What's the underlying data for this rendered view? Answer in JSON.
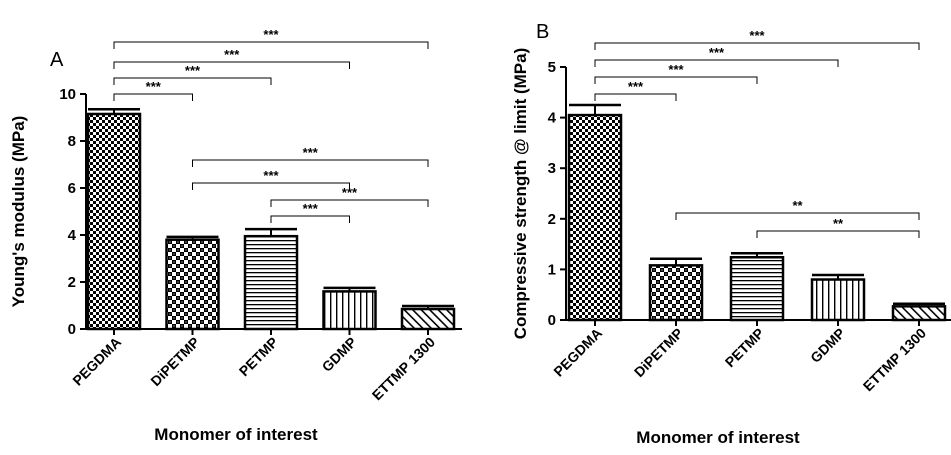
{
  "chart_data": [
    {
      "type": "bar",
      "panel_label": "A",
      "xlabel": "Monomer of interest",
      "ylabel": "Young's modulus (MPa)",
      "ylim": [
        0,
        10
      ],
      "yticks": [
        0,
        2,
        4,
        6,
        8,
        10
      ],
      "categories": [
        "PEGDMA",
        "DiPETMP",
        "PETMP",
        "GDMP",
        "ETTMP 1300"
      ],
      "values": [
        9.15,
        3.8,
        3.95,
        1.6,
        0.85
      ],
      "errors": [
        0.2,
        0.12,
        0.3,
        0.15,
        0.13
      ],
      "patterns": [
        "checker",
        "dotted-checker",
        "horizontal-lines",
        "vertical-lines",
        "diagonal-lines"
      ],
      "grid": false,
      "significance": [
        {
          "from": "PEGDMA",
          "to": "DiPETMP",
          "label": "***"
        },
        {
          "from": "PEGDMA",
          "to": "PETMP",
          "label": "***"
        },
        {
          "from": "PEGDMA",
          "to": "GDMP",
          "label": "***"
        },
        {
          "from": "PEGDMA",
          "to": "ETTMP 1300",
          "label": "***"
        },
        {
          "from": "PETMP",
          "to": "GDMP",
          "label": "***"
        },
        {
          "from": "PETMP",
          "to": "ETTMP 1300",
          "label": "***"
        },
        {
          "from": "DiPETMP",
          "to": "GDMP",
          "label": "***"
        },
        {
          "from": "DiPETMP",
          "to": "ETTMP 1300",
          "label": "***"
        }
      ]
    },
    {
      "type": "bar",
      "panel_label": "B",
      "xlabel": "Monomer of interest",
      "ylabel": "Compressive strength @ limit (MPa)",
      "ylim": [
        0,
        5
      ],
      "yticks": [
        0,
        1,
        2,
        3,
        4,
        5
      ],
      "categories": [
        "PEGDMA",
        "DiPETMP",
        "PETMP",
        "GDMP",
        "ETTMP 1300"
      ],
      "values": [
        4.05,
        1.08,
        1.24,
        0.8,
        0.27
      ],
      "errors": [
        0.2,
        0.13,
        0.08,
        0.09,
        0.05
      ],
      "patterns": [
        "checker",
        "dotted-checker",
        "horizontal-lines",
        "vertical-lines",
        "diagonal-lines"
      ],
      "grid": false,
      "significance": [
        {
          "from": "PEGDMA",
          "to": "DiPETMP",
          "label": "***"
        },
        {
          "from": "PEGDMA",
          "to": "PETMP",
          "label": "***"
        },
        {
          "from": "PEGDMA",
          "to": "GDMP",
          "label": "***"
        },
        {
          "from": "PEGDMA",
          "to": "ETTMP 1300",
          "label": "***"
        },
        {
          "from": "PETMP",
          "to": "ETTMP 1300",
          "label": "**"
        },
        {
          "from": "DiPETMP",
          "to": "ETTMP 1300",
          "label": "**"
        }
      ]
    }
  ]
}
